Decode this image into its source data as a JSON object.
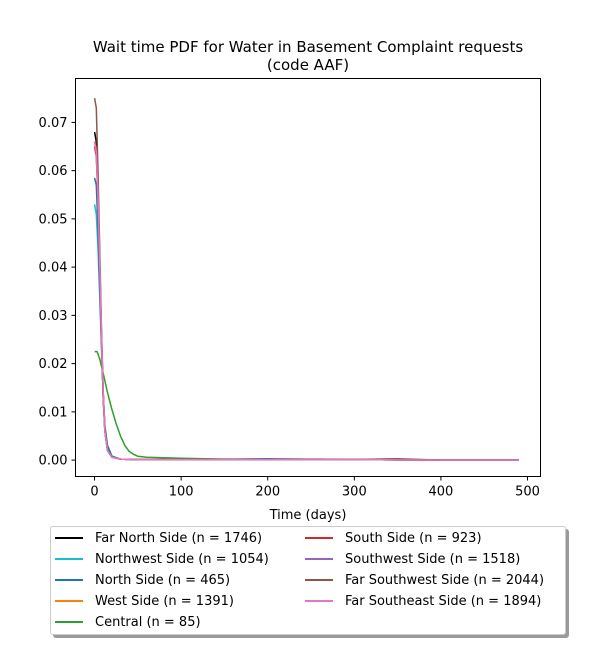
{
  "chart_data": {
    "type": "line",
    "title": "Wait time PDF for Water in Basement Complaint  requests",
    "subtitle": "(code AAF)",
    "xlabel": "Time (days)",
    "ylabel": "",
    "xlim": [
      -22,
      515
    ],
    "ylim": [
      -0.0034,
      0.0791
    ],
    "xticks": [
      0,
      100,
      200,
      300,
      400,
      500
    ],
    "xtick_labels": [
      "0",
      "100",
      "200",
      "300",
      "400",
      "500"
    ],
    "yticks": [
      0.0,
      0.01,
      0.02,
      0.03,
      0.04,
      0.05,
      0.06,
      0.07
    ],
    "ytick_labels": [
      "0.00",
      "0.01",
      "0.02",
      "0.03",
      "0.04",
      "0.05",
      "0.06",
      "0.07"
    ],
    "grid": false,
    "legend_position": "below",
    "series": [
      {
        "name": "Far North Side (n = 1746)",
        "color": "#000000",
        "x": [
          0,
          2,
          4,
          6,
          8,
          10,
          12,
          15,
          20,
          30,
          50,
          100,
          200,
          300,
          400,
          490
        ],
        "y": [
          0.068,
          0.066,
          0.055,
          0.04,
          0.025,
          0.013,
          0.006,
          0.002,
          0.0006,
          0.0002,
          0.0001,
          0.0001,
          0.0001,
          0.0001,
          0.0,
          0.0
        ]
      },
      {
        "name": "Northwest Side (n = 1054)",
        "color": "#17becf",
        "x": [
          0,
          2,
          4,
          6,
          8,
          10,
          12,
          15,
          20,
          30,
          50,
          100,
          200,
          300,
          400,
          490
        ],
        "y": [
          0.053,
          0.051,
          0.044,
          0.034,
          0.023,
          0.014,
          0.007,
          0.003,
          0.0008,
          0.0002,
          0.0001,
          0.0001,
          0.0001,
          0.0001,
          0.0,
          0.0
        ]
      },
      {
        "name": "North Side (n = 465)",
        "color": "#1f77b4",
        "x": [
          0,
          2,
          4,
          6,
          8,
          10,
          12,
          15,
          20,
          30,
          50,
          100,
          200,
          300,
          400,
          490
        ],
        "y": [
          0.0585,
          0.057,
          0.048,
          0.036,
          0.024,
          0.014,
          0.007,
          0.003,
          0.0008,
          0.0002,
          0.0001,
          0.0001,
          0.0003,
          0.0001,
          0.0,
          0.0
        ]
      },
      {
        "name": "West Side (n = 1391)",
        "color": "#ff7f0e",
        "x": [
          0,
          2,
          4,
          6,
          8,
          10,
          12,
          15,
          20,
          30,
          50,
          100,
          200,
          300,
          400,
          490
        ],
        "y": [
          0.066,
          0.064,
          0.054,
          0.04,
          0.025,
          0.013,
          0.006,
          0.002,
          0.0006,
          0.0002,
          0.0001,
          0.0001,
          0.0001,
          0.0001,
          0.0,
          0.0
        ]
      },
      {
        "name": "Central (n = 85)",
        "color": "#2ca02c",
        "x": [
          0,
          3,
          6,
          10,
          15,
          20,
          25,
          30,
          35,
          40,
          45,
          50,
          60,
          80,
          100,
          150,
          200,
          300,
          400,
          490
        ],
        "y": [
          0.0225,
          0.0225,
          0.021,
          0.018,
          0.014,
          0.0105,
          0.0075,
          0.005,
          0.003,
          0.0018,
          0.0012,
          0.0008,
          0.0006,
          0.0005,
          0.0004,
          0.0002,
          0.0001,
          0.0001,
          0.0,
          0.0
        ]
      },
      {
        "name": "South Side (n = 923)",
        "color": "#d62728",
        "x": [
          0,
          2,
          4,
          6,
          8,
          10,
          12,
          15,
          20,
          30,
          50,
          100,
          200,
          300,
          400,
          490
        ],
        "y": [
          0.065,
          0.063,
          0.054,
          0.04,
          0.025,
          0.013,
          0.006,
          0.002,
          0.0006,
          0.0002,
          0.0001,
          0.0001,
          0.0001,
          0.0001,
          0.0,
          0.0
        ]
      },
      {
        "name": "Southwest Side (n = 1518)",
        "color": "#9467bd",
        "x": [
          0,
          2,
          4,
          6,
          8,
          10,
          12,
          15,
          20,
          30,
          50,
          100,
          200,
          300,
          400,
          490
        ],
        "y": [
          0.066,
          0.064,
          0.055,
          0.041,
          0.026,
          0.014,
          0.006,
          0.002,
          0.0006,
          0.0002,
          0.0001,
          0.0001,
          0.0001,
          0.0001,
          0.0,
          0.0
        ]
      },
      {
        "name": "Far Southwest Side (n = 2044)",
        "color": "#8c564b",
        "x": [
          0,
          2,
          4,
          6,
          8,
          10,
          12,
          15,
          20,
          30,
          50,
          100,
          200,
          260,
          300,
          350,
          400,
          490
        ],
        "y": [
          0.075,
          0.073,
          0.06,
          0.044,
          0.027,
          0.014,
          0.006,
          0.002,
          0.0006,
          0.0002,
          0.0001,
          0.0001,
          0.0001,
          0.0002,
          0.0001,
          0.0003,
          0.0,
          0.0
        ]
      },
      {
        "name": "Far Southeast Side (n = 1894)",
        "color": "#e377c2",
        "x": [
          0,
          2,
          4,
          6,
          8,
          10,
          12,
          15,
          20,
          30,
          50,
          100,
          200,
          300,
          400,
          490
        ],
        "y": [
          0.066,
          0.064,
          0.055,
          0.041,
          0.026,
          0.014,
          0.006,
          0.002,
          0.0006,
          0.0002,
          0.0001,
          0.0001,
          0.0001,
          0.0001,
          0.0,
          0.0
        ]
      }
    ]
  }
}
